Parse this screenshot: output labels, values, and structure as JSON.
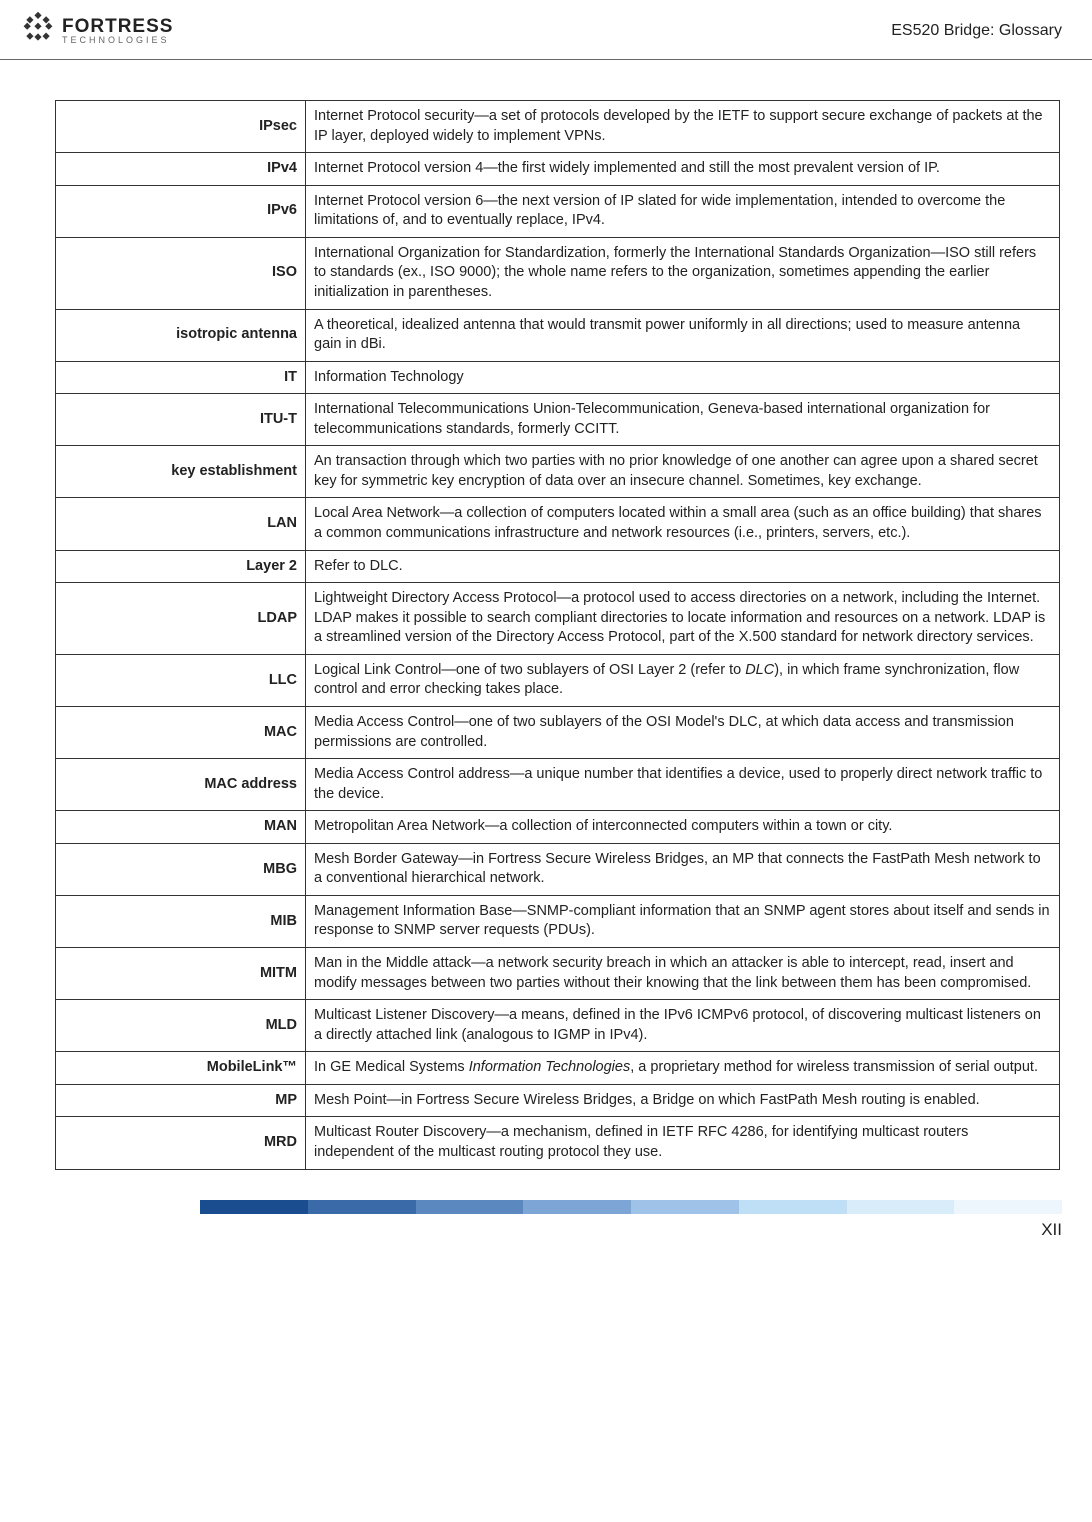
{
  "header": {
    "logo_main": "FORTRESS",
    "logo_sub": "TECHNOLOGIES",
    "doc_title": "ES520 Bridge: Glossary"
  },
  "glossary": [
    {
      "term": "IPsec",
      "def": "Internet Protocol security—a set of protocols developed by the IETF to support secure exchange of packets at the IP layer, deployed widely to implement VPNs."
    },
    {
      "term": "IPv4",
      "def": "Internet Protocol version 4—the first widely implemented and still the most prevalent version of IP."
    },
    {
      "term": "IPv6",
      "def": "Internet Protocol version 6—the next version of IP slated for wide implementation, intended to overcome the limitations of, and to eventually replace, IPv4."
    },
    {
      "term": "ISO",
      "def": "International Organization for Standardization, formerly the International Standards Organization—ISO still refers to standards (ex., ISO 9000); the whole name refers to the organization, sometimes appending the earlier initialization in parentheses."
    },
    {
      "term": "isotropic antenna",
      "def": "A theoretical, idealized antenna that would transmit power uniformly in all directions; used to measure antenna gain in dBi."
    },
    {
      "term": "IT",
      "def": "Information Technology"
    },
    {
      "term": "ITU-T",
      "def": "International Telecommunications Union-Telecommunication, Geneva-based international organization for telecommunications standards, formerly CCITT."
    },
    {
      "term": "key establishment",
      "def": "An transaction through which two parties with no prior knowledge of one another can agree upon a shared secret key for symmetric key encryption of data over an insecure channel. Sometimes, key exchange."
    },
    {
      "term": "LAN",
      "def": "Local Area Network—a collection of computers located within a small area (such as an office building) that shares a common communications infrastructure and network resources (i.e., printers, servers, etc.)."
    },
    {
      "term": "Layer 2",
      "def": "Refer to DLC."
    },
    {
      "term": "LDAP",
      "def": "Lightweight Directory Access Protocol—a protocol used to access directories on a network, including the Internet. LDAP makes it possible to search compliant directories to locate information and resources on a network. LDAP is a streamlined version of the Directory Access Protocol, part of the X.500 standard for network directory services."
    },
    {
      "term": "LLC",
      "def": "Logical Link Control—one of two sublayers of OSI Layer 2 (refer to <span class=\"italic\">DLC</span>), in which frame synchronization, flow control and error checking takes place."
    },
    {
      "term": "MAC",
      "def": "Media Access Control—one of two sublayers of the OSI Model's DLC, at which data access and transmission permissions are controlled."
    },
    {
      "term": "MAC address",
      "def": "Media Access Control address—a unique number that identifies a device, used to properly direct network traffic to the device."
    },
    {
      "term": "MAN",
      "def": "Metropolitan Area Network—a collection of interconnected computers within a town or city."
    },
    {
      "term": "MBG",
      "def": "Mesh Border Gateway—in Fortress Secure Wireless Bridges, an MP that connects the FastPath Mesh network to a conventional hierarchical network."
    },
    {
      "term": "MIB",
      "def": "Management Information Base—SNMP-compliant information that an SNMP agent stores about itself and sends in response to SNMP server requests (PDUs)."
    },
    {
      "term": "MITM",
      "def": "Man in the Middle attack—a network security breach in which an attacker is able to intercept, read, insert and modify messages between two parties without their knowing that the link between them has been compromised."
    },
    {
      "term": "MLD",
      "def": "Multicast Listener Discovery—a means, defined in the IPv6 ICMPv6 protocol, of discovering multicast listeners on a directly attached link (analogous to IGMP in IPv4)."
    },
    {
      "term": "MobileLink™",
      "def": "In GE Medical Systems <span class=\"italic\">Information Technologies</span>, a proprietary method for wireless transmission of serial output."
    },
    {
      "term": "MP",
      "def": "Mesh Point—in Fortress Secure Wireless Bridges, a Bridge on which FastPath Mesh routing is enabled."
    },
    {
      "term": "MRD",
      "def": "Multicast Router Discovery—a mechanism, defined in IETF RFC 4286, for identifying multicast routers independent of the multicast routing protocol they use."
    }
  ],
  "footer_colors": [
    "#1a4d8f",
    "#3b6aa8",
    "#5c88c0",
    "#7da5d6",
    "#9ec2e8",
    "#bedff5",
    "#d8ecfa",
    "#eef6fd"
  ],
  "page_number": "XII"
}
